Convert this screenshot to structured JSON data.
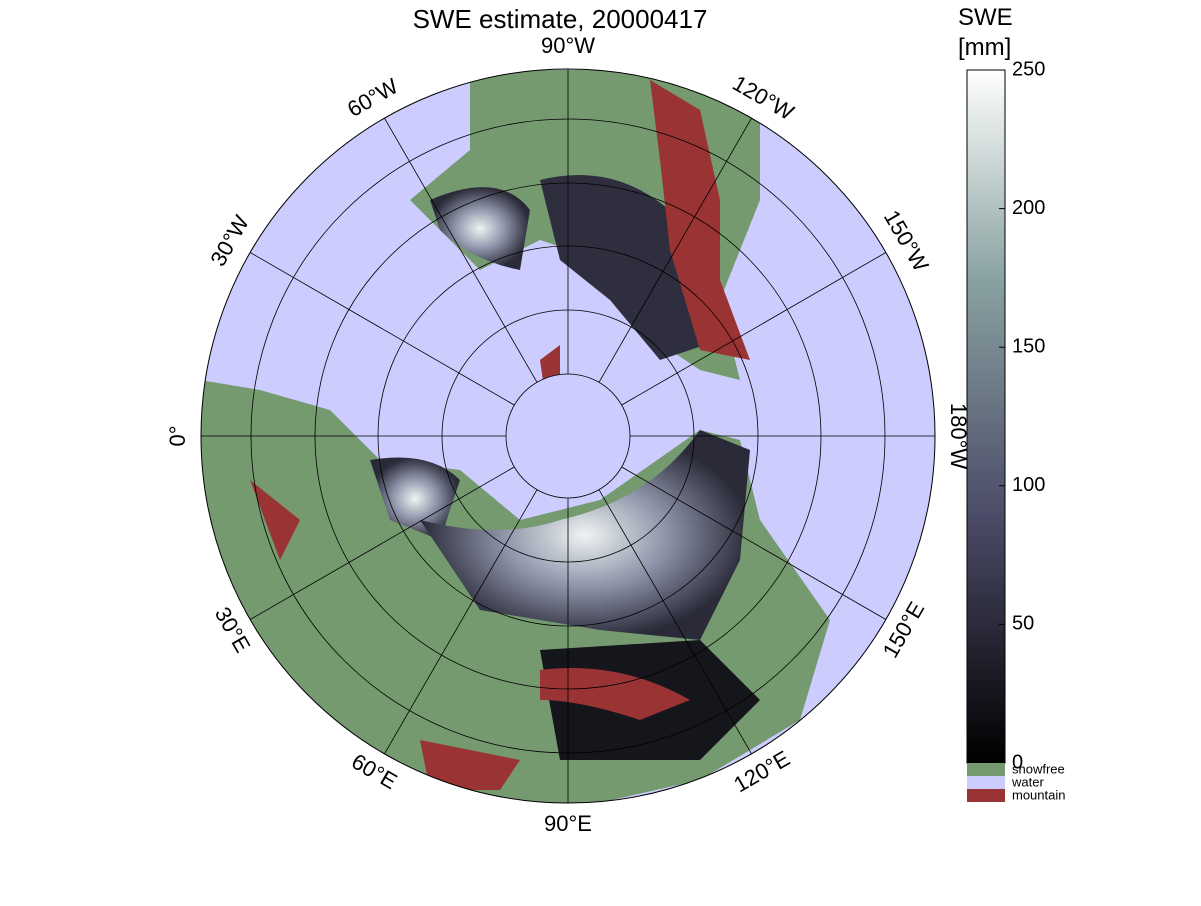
{
  "title": "SWE estimate, 20000417",
  "longitude_labels": [
    "0°",
    "30°W",
    "60°W",
    "90°W",
    "120°W",
    "150°W",
    "180°W",
    "150°E",
    "120°E",
    "90°E",
    "60°E",
    "30°E"
  ],
  "colorbar": {
    "label_line1": "SWE",
    "label_line2": "[mm]",
    "lim": [
      0,
      250
    ],
    "ticks": [
      0,
      50,
      100,
      150,
      200,
      250
    ]
  },
  "legend": [
    {
      "name": "snowfree",
      "color": "#759a70"
    },
    {
      "name": "water",
      "color": "#ccccff"
    },
    {
      "name": "mountain",
      "color": "#9a3333"
    }
  ]
}
